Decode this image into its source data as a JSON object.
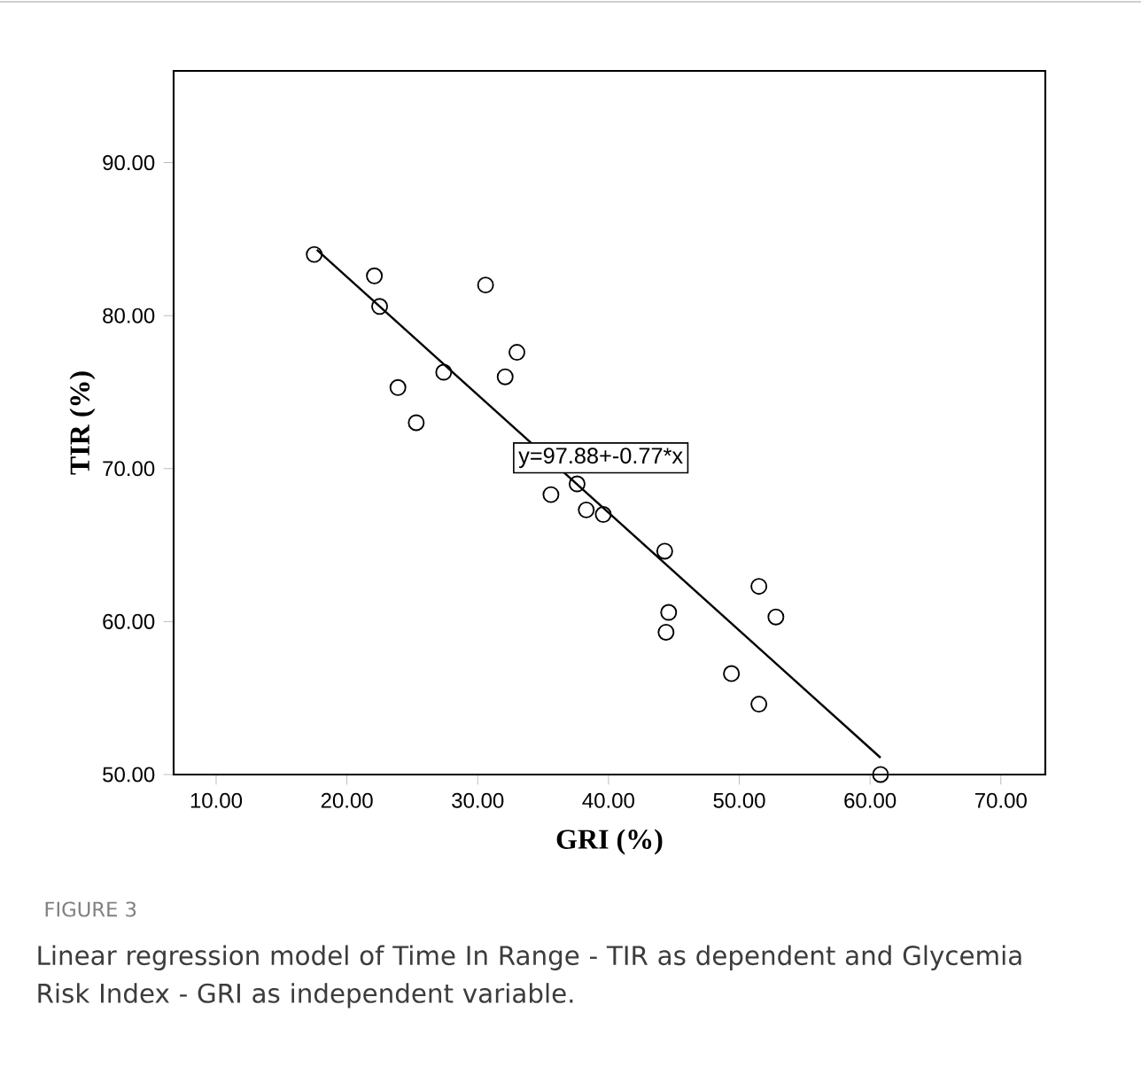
{
  "chart_data": {
    "type": "scatter",
    "xlabel": "GRI (%)",
    "ylabel": "TIR (%)",
    "xlim": [
      6.75,
      73.4
    ],
    "ylim": [
      50,
      96
    ],
    "xticks": [
      {
        "value": 10,
        "label": "10.00"
      },
      {
        "value": 20,
        "label": "20.00"
      },
      {
        "value": 30,
        "label": "30.00"
      },
      {
        "value": 40,
        "label": "40.00"
      },
      {
        "value": 50,
        "label": "50.00"
      },
      {
        "value": 60,
        "label": "60.00"
      },
      {
        "value": 70,
        "label": "70.00"
      }
    ],
    "yticks": [
      {
        "value": 50,
        "label": "50.00"
      },
      {
        "value": 60,
        "label": "60.00"
      },
      {
        "value": 70,
        "label": "70.00"
      },
      {
        "value": 80,
        "label": "80.00"
      },
      {
        "value": 90,
        "label": "90.00"
      }
    ],
    "grid": false,
    "series": [
      {
        "marker": "circle",
        "color": "#000000",
        "x": [
          17.5,
          22.1,
          22.5,
          23.9,
          25.3,
          27.4,
          30.6,
          32.1,
          33.0,
          35.6,
          37.6,
          38.3,
          39.6,
          44.3,
          44.6,
          44.4,
          49.4,
          51.5,
          51.5,
          52.8,
          60.8
        ],
        "values": [
          84.0,
          82.6,
          80.6,
          75.3,
          73.0,
          76.3,
          82.0,
          76.0,
          77.6,
          68.3,
          69.0,
          67.3,
          67.0,
          64.6,
          60.6,
          59.3,
          56.6,
          62.3,
          54.6,
          60.3,
          50.0
        ]
      },
      {
        "type": "line",
        "marker": "none",
        "color": "#000000",
        "x": [
          17.7,
          60.8
        ],
        "values": [
          84.3,
          51.1
        ]
      }
    ],
    "annotations": [
      "y=97.88+-0.77*x",
      "FIGURE 3",
      "Linear regression model of Time In Range - TIR as dependent and Glycemia Risk Index - GRI as independent variable."
    ]
  }
}
